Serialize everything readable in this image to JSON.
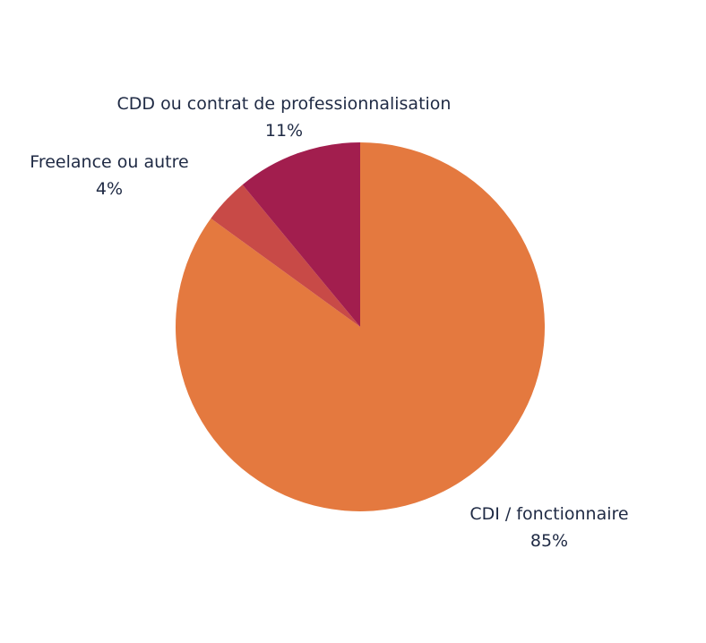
{
  "chart_data": {
    "type": "pie",
    "slices": [
      {
        "label": "CDI / fonctionnaire",
        "value": 85,
        "value_label": "85%",
        "color": "#E4793F"
      },
      {
        "label": "Freelance ou autre",
        "value": 4,
        "value_label": "4%",
        "color": "#C84A47"
      },
      {
        "label": "CDD ou contrat de professionnalisation",
        "value": 11,
        "value_label": "11%",
        "color": "#A21E4E"
      }
    ],
    "start_angle": "12 o'clock",
    "direction": "clockwise",
    "legend": "none (labels next to slices)"
  }
}
